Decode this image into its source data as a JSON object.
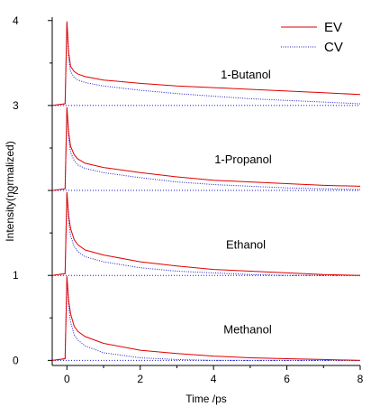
{
  "chart_data": {
    "type": "line",
    "xlabel": "Time /ps",
    "ylabel": "Intensity(normalized)",
    "xlim": [
      -0.4,
      8.0
    ],
    "ylim": [
      -0.06,
      4.04
    ],
    "x_ticks": [
      0,
      2,
      4,
      6,
      8
    ],
    "y_ticks": [
      0,
      1,
      2,
      3,
      4
    ],
    "grid": false,
    "legend_placement": "top-right",
    "legend": [
      {
        "name": "EV",
        "color": "#e00000",
        "style": "solid"
      },
      {
        "name": "CV",
        "color": "#1a1ac8",
        "style": "dotted"
      }
    ],
    "series_colors": {
      "EV": "#e00000",
      "CV": "#1a1ac8"
    },
    "groups": [
      {
        "label": "Methanol",
        "offset": 0,
        "EV": {
          "x": [
            -0.4,
            -0.05,
            0.0,
            0.05,
            0.1,
            0.2,
            0.3,
            0.5,
            1,
            2,
            3,
            4,
            5,
            6,
            7,
            8
          ],
          "y": [
            0.0,
            0.02,
            0.99,
            0.7,
            0.55,
            0.4,
            0.34,
            0.28,
            0.2,
            0.12,
            0.08,
            0.05,
            0.03,
            0.02,
            0.01,
            0.0
          ]
        },
        "CV": {
          "x": [
            -0.4,
            -0.05,
            0.0,
            0.05,
            0.1,
            0.2,
            0.3,
            0.5,
            1,
            2,
            3,
            4,
            5,
            6,
            7,
            8
          ],
          "y": [
            0.0,
            0.02,
            0.97,
            0.62,
            0.45,
            0.3,
            0.24,
            0.17,
            0.09,
            0.03,
            0.01,
            0.0,
            0.0,
            0.0,
            0.0,
            0.0
          ]
        }
      },
      {
        "label": "Ethanol",
        "offset": 1,
        "EV": {
          "x": [
            -0.4,
            -0.05,
            0.0,
            0.05,
            0.1,
            0.2,
            0.3,
            0.5,
            1,
            2,
            3,
            4,
            5,
            6,
            7,
            8
          ],
          "y": [
            1.0,
            1.02,
            1.98,
            1.7,
            1.55,
            1.42,
            1.36,
            1.3,
            1.24,
            1.16,
            1.11,
            1.07,
            1.05,
            1.03,
            1.01,
            1.0
          ]
        },
        "CV": {
          "x": [
            -0.4,
            -0.05,
            0.0,
            0.05,
            0.1,
            0.2,
            0.3,
            0.5,
            1,
            2,
            3,
            4,
            5,
            6,
            7,
            8
          ],
          "y": [
            1.0,
            1.02,
            1.96,
            1.62,
            1.47,
            1.34,
            1.28,
            1.22,
            1.16,
            1.09,
            1.05,
            1.03,
            1.01,
            1.0,
            1.0,
            1.0
          ]
        }
      },
      {
        "label": "1-Propanol",
        "offset": 2,
        "EV": {
          "x": [
            -0.4,
            -0.05,
            0.0,
            0.05,
            0.1,
            0.2,
            0.3,
            0.5,
            1,
            2,
            3,
            4,
            5,
            6,
            7,
            8
          ],
          "y": [
            2.0,
            2.02,
            2.98,
            2.68,
            2.52,
            2.42,
            2.37,
            2.32,
            2.27,
            2.21,
            2.16,
            2.12,
            2.1,
            2.08,
            2.06,
            2.05
          ]
        },
        "CV": {
          "x": [
            -0.4,
            -0.05,
            0.0,
            0.05,
            0.1,
            0.2,
            0.3,
            0.5,
            1,
            2,
            3,
            4,
            5,
            6,
            7,
            8
          ],
          "y": [
            2.0,
            2.02,
            2.96,
            2.6,
            2.45,
            2.35,
            2.3,
            2.26,
            2.21,
            2.15,
            2.1,
            2.07,
            2.05,
            2.03,
            2.02,
            2.01
          ]
        }
      },
      {
        "label": "1-Butanol",
        "offset": 3,
        "EV": {
          "x": [
            -0.4,
            -0.05,
            0.0,
            0.05,
            0.1,
            0.2,
            0.3,
            0.5,
            1,
            2,
            3,
            4,
            5,
            6,
            7,
            8
          ],
          "y": [
            3.0,
            3.02,
            3.99,
            3.62,
            3.46,
            3.4,
            3.37,
            3.34,
            3.3,
            3.26,
            3.23,
            3.21,
            3.19,
            3.17,
            3.15,
            3.13
          ]
        },
        "CV": {
          "x": [
            -0.4,
            -0.05,
            0.0,
            0.05,
            0.1,
            0.2,
            0.3,
            0.5,
            1,
            2,
            3,
            4,
            5,
            6,
            7,
            8
          ],
          "y": [
            3.0,
            3.02,
            3.96,
            3.55,
            3.4,
            3.33,
            3.3,
            3.27,
            3.23,
            3.18,
            3.14,
            3.11,
            3.08,
            3.06,
            3.04,
            3.02
          ]
        }
      }
    ]
  }
}
